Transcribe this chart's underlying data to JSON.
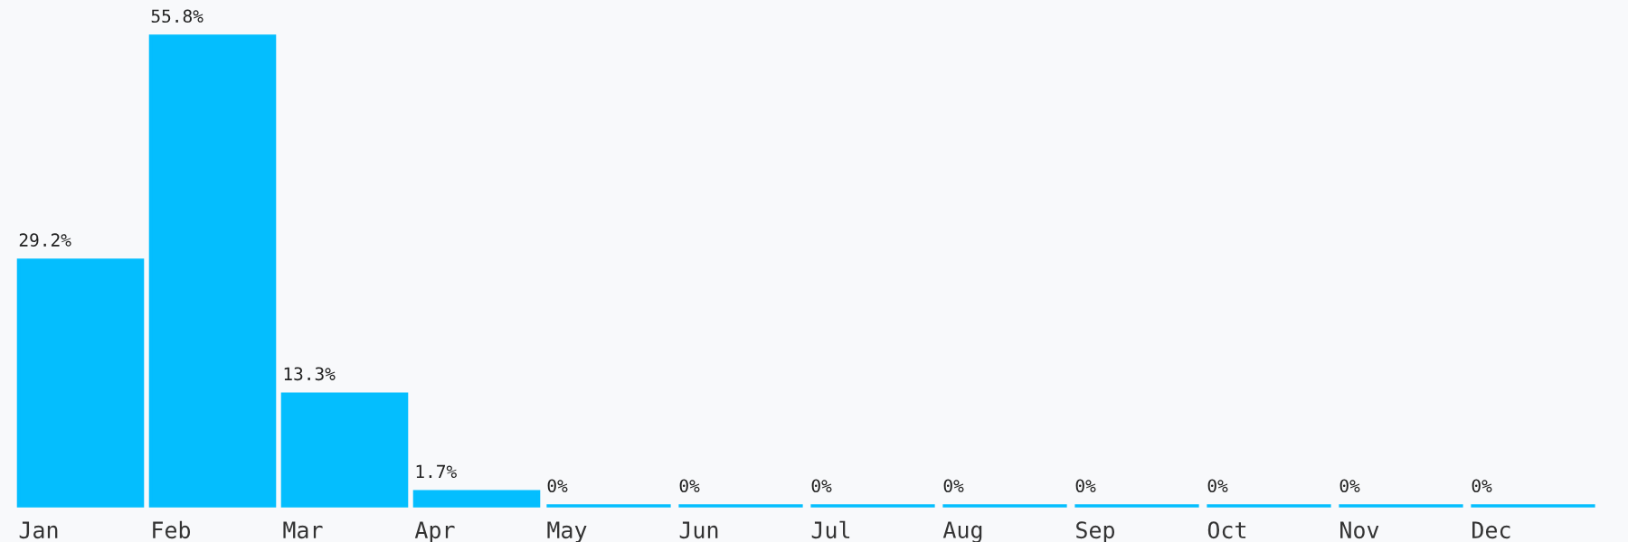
{
  "chart_data": {
    "type": "bar",
    "categories": [
      "Jan",
      "Feb",
      "Mar",
      "Apr",
      "May",
      "Jun",
      "Jul",
      "Aug",
      "Sep",
      "Oct",
      "Nov",
      "Dec"
    ],
    "values": [
      29.2,
      55.8,
      13.3,
      1.7,
      0,
      0,
      0,
      0,
      0,
      0,
      0,
      0
    ],
    "value_labels": [
      "29.2%",
      "55.8%",
      "13.3%",
      "1.7%",
      "0%",
      "0%",
      "0%",
      "0%",
      "0%",
      "0%",
      "0%",
      "0%"
    ],
    "color": "#04befe",
    "grid": false,
    "legend": false
  }
}
